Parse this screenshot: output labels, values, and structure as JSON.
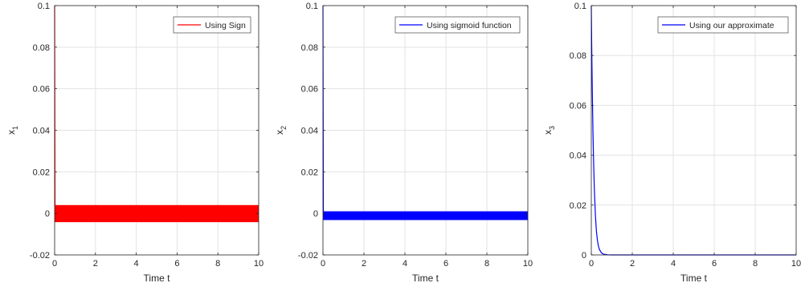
{
  "chart_data": [
    {
      "type": "line",
      "xlabel": "Time t",
      "ylabel": "x",
      "ylabel_sub": "1",
      "xlim": [
        0,
        10
      ],
      "ylim": [
        -0.02,
        0.1
      ],
      "xticks": [
        0,
        2,
        4,
        6,
        8,
        10
      ],
      "yticks": [
        -0.02,
        0,
        0.02,
        0.04,
        0.06,
        0.08,
        0.1
      ],
      "ytick_labels": [
        "-0.02",
        "0",
        "0.02",
        "0.04",
        "0.06",
        "0.08",
        "0.1"
      ],
      "grid": true,
      "legend_position": "top-right",
      "series": [
        {
          "name": "Using Sign",
          "color": "#ff0000",
          "x": [
            0,
            0.02,
            0.02,
            10
          ],
          "y": [
            0.1,
            0.005,
            -0.004,
            -0.004
          ],
          "band": [
            -0.004,
            0.004
          ],
          "band_from": 0.02
        }
      ]
    },
    {
      "type": "line",
      "xlabel": "Time t",
      "ylabel": "x",
      "ylabel_sub": "2",
      "xlim": [
        0,
        10
      ],
      "ylim": [
        -0.02,
        0.1
      ],
      "xticks": [
        0,
        2,
        4,
        6,
        8,
        10
      ],
      "yticks": [
        -0.02,
        0,
        0.02,
        0.04,
        0.06,
        0.08,
        0.1
      ],
      "ytick_labels": [
        "-0.02",
        "0",
        "0.02",
        "0.04",
        "0.06",
        "0.08",
        "0.1"
      ],
      "grid": true,
      "legend_position": "top-right",
      "series": [
        {
          "name": "Using sigmoid function",
          "color": "#0000ff",
          "x": [
            0,
            0.02,
            0.02,
            10
          ],
          "y": [
            0.1,
            0.002,
            -0.003,
            -0.003
          ],
          "band": [
            -0.003,
            0.001
          ],
          "band_from": 0.02
        }
      ]
    },
    {
      "type": "line",
      "xlabel": "Time t",
      "ylabel": "x",
      "ylabel_sub": "3",
      "xlim": [
        0,
        10
      ],
      "ylim": [
        0,
        0.1
      ],
      "xticks": [
        0,
        2,
        4,
        6,
        8,
        10
      ],
      "yticks": [
        0,
        0.02,
        0.04,
        0.06,
        0.08,
        0.1
      ],
      "ytick_labels": [
        "0",
        "0.02",
        "0.04",
        "0.06",
        "0.08",
        "0.1"
      ],
      "grid": true,
      "legend_position": "top-right",
      "series": [
        {
          "name": "Using our approximate",
          "color": "#0000ff",
          "x": [
            0,
            0.02,
            0.05,
            0.08,
            0.1,
            0.12,
            0.15,
            0.2,
            0.25,
            0.3,
            0.35,
            0.4,
            0.5,
            0.6,
            0.8,
            1.0,
            2,
            4,
            6,
            8,
            10
          ],
          "y": [
            0.1,
            0.084,
            0.065,
            0.05,
            0.042,
            0.035,
            0.026,
            0.016,
            0.0095,
            0.0058,
            0.0035,
            0.0021,
            0.0008,
            0.0003,
            5e-05,
            0,
            0,
            0,
            0,
            0,
            0
          ]
        }
      ]
    }
  ]
}
